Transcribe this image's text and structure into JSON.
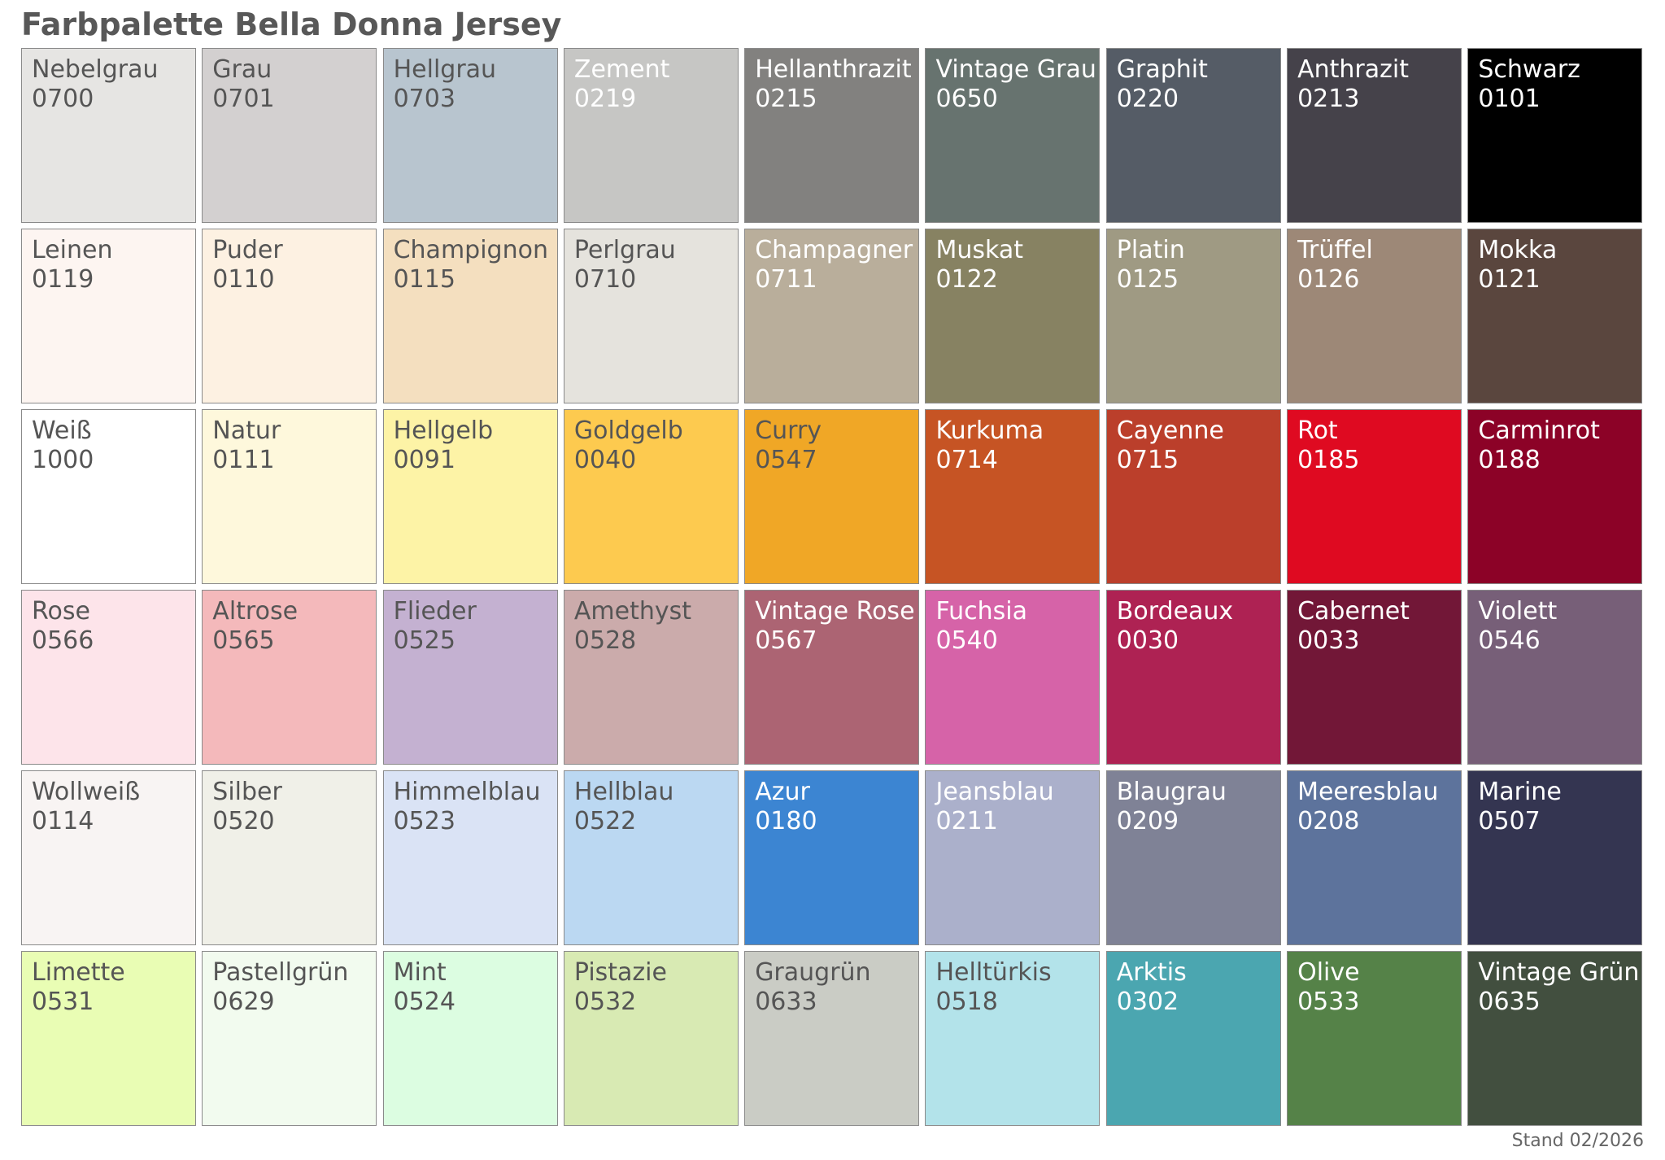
{
  "title": "Farbpalette Bella Donna Jersey",
  "footer": "Stand 02/2026",
  "rows": [
    [
      {
        "name": "Nebelgrau",
        "code": "0700",
        "color": "#e6e5e3",
        "text_color": "#555555"
      },
      {
        "name": "Grau",
        "code": "0701",
        "color": "#d3d0d0",
        "text_color": "#555555"
      },
      {
        "name": "Hellgrau",
        "code": "0703",
        "color": "#b8c5cf",
        "text_color": "#555555"
      },
      {
        "name": "Zement",
        "code": "0219",
        "color": "#c6c6c4",
        "text_color": "#ffffff"
      },
      {
        "name": "Hellanthrazit",
        "code": "0215",
        "color": "#82817f",
        "text_color": "#ffffff"
      },
      {
        "name": "Vintage Grau",
        "code": "0650",
        "color": "#67736f",
        "text_color": "#ffffff"
      },
      {
        "name": "Graphit",
        "code": "0220",
        "color": "#555c66",
        "text_color": "#ffffff"
      },
      {
        "name": "Anthrazit",
        "code": "0213",
        "color": "#45424a",
        "text_color": "#ffffff"
      },
      {
        "name": "Schwarz",
        "code": "0101",
        "color": "#000000",
        "text_color": "#ffffff"
      }
    ],
    [
      {
        "name": "Leinen",
        "code": "0119",
        "color": "#fdf5f1",
        "text_color": "#555555"
      },
      {
        "name": "Puder",
        "code": "0110",
        "color": "#fdf1e2",
        "text_color": "#555555"
      },
      {
        "name": "Champignon",
        "code": "0115",
        "color": "#f4dfbf",
        "text_color": "#555555"
      },
      {
        "name": "Perlgrau",
        "code": "0710",
        "color": "#e5e3dd",
        "text_color": "#555555"
      },
      {
        "name": "Champagner",
        "code": "0711",
        "color": "#b9ae9b",
        "text_color": "#ffffff"
      },
      {
        "name": "Muskat",
        "code": "0122",
        "color": "#878262",
        "text_color": "#ffffff"
      },
      {
        "name": "Platin",
        "code": "0125",
        "color": "#9f9a83",
        "text_color": "#ffffff"
      },
      {
        "name": "Trüffel",
        "code": "0126",
        "color": "#9d8877",
        "text_color": "#ffffff"
      },
      {
        "name": "Mokka",
        "code": "0121",
        "color": "#5a463e",
        "text_color": "#ffffff"
      }
    ],
    [
      {
        "name": "Weiß",
        "code": "1000",
        "color": "#ffffff",
        "text_color": "#555555"
      },
      {
        "name": "Natur",
        "code": "0111",
        "color": "#fef8dc",
        "text_color": "#555555"
      },
      {
        "name": "Hellgelb",
        "code": "0091",
        "color": "#fdf3a6",
        "text_color": "#555555"
      },
      {
        "name": "Goldgelb",
        "code": "0040",
        "color": "#fdca4f",
        "text_color": "#555555"
      },
      {
        "name": "Curry",
        "code": "0547",
        "color": "#f0a726",
        "text_color": "#555555"
      },
      {
        "name": "Kurkuma",
        "code": "0714",
        "color": "#c65424",
        "text_color": "#ffffff"
      },
      {
        "name": "Cayenne",
        "code": "0715",
        "color": "#bb3f2b",
        "text_color": "#ffffff"
      },
      {
        "name": "Rot",
        "code": "0185",
        "color": "#df0a21",
        "text_color": "#ffffff"
      },
      {
        "name": "Carminrot",
        "code": "0188",
        "color": "#8c0227",
        "text_color": "#ffffff"
      }
    ],
    [
      {
        "name": "Rose",
        "code": "0566",
        "color": "#fde4ea",
        "text_color": "#555555"
      },
      {
        "name": "Altrose",
        "code": "0565",
        "color": "#f4b9bb",
        "text_color": "#555555"
      },
      {
        "name": "Flieder",
        "code": "0525",
        "color": "#c4b1d1",
        "text_color": "#555555"
      },
      {
        "name": "Amethyst",
        "code": "0528",
        "color": "#cbabab",
        "text_color": "#555555"
      },
      {
        "name": "Vintage Rose",
        "code": "0567",
        "color": "#ac6473",
        "text_color": "#ffffff"
      },
      {
        "name": "Fuchsia",
        "code": "0540",
        "color": "#d663a8",
        "text_color": "#ffffff"
      },
      {
        "name": "Bordeaux",
        "code": "0030",
        "color": "#ae2253",
        "text_color": "#ffffff"
      },
      {
        "name": "Cabernet",
        "code": "0033",
        "color": "#721737",
        "text_color": "#ffffff"
      },
      {
        "name": "Violett",
        "code": "0546",
        "color": "#775f78",
        "text_color": "#ffffff"
      }
    ],
    [
      {
        "name": "Wollweiß",
        "code": "0114",
        "color": "#f8f4f3",
        "text_color": "#555555"
      },
      {
        "name": "Silber",
        "code": "0520",
        "color": "#f0f0e8",
        "text_color": "#555555"
      },
      {
        "name": "Himmelblau",
        "code": "0523",
        "color": "#dae3f5",
        "text_color": "#555555"
      },
      {
        "name": "Hellblau",
        "code": "0522",
        "color": "#bbd8f2",
        "text_color": "#555555"
      },
      {
        "name": "Azur",
        "code": "0180",
        "color": "#3c85d2",
        "text_color": "#ffffff"
      },
      {
        "name": "Jeansblau",
        "code": "0211",
        "color": "#abb0cb",
        "text_color": "#ffffff"
      },
      {
        "name": "Blaugrau",
        "code": "0209",
        "color": "#7f8296",
        "text_color": "#ffffff"
      },
      {
        "name": "Meeresblau",
        "code": "0208",
        "color": "#5d739c",
        "text_color": "#ffffff"
      },
      {
        "name": "Marine",
        "code": "0507",
        "color": "#343551",
        "text_color": "#ffffff"
      }
    ],
    [
      {
        "name": "Limette",
        "code": "0531",
        "color": "#e9fdb4",
        "text_color": "#555555"
      },
      {
        "name": "Pastellgrün",
        "code": "0629",
        "color": "#f2fbef",
        "text_color": "#555555"
      },
      {
        "name": "Mint",
        "code": "0524",
        "color": "#dcfde1",
        "text_color": "#555555"
      },
      {
        "name": "Pistazie",
        "code": "0532",
        "color": "#d8eab3",
        "text_color": "#555555"
      },
      {
        "name": "Graugrün",
        "code": "0633",
        "color": "#caccc5",
        "text_color": "#555555"
      },
      {
        "name": "Helltürkis",
        "code": "0518",
        "color": "#b3e3ea",
        "text_color": "#555555"
      },
      {
        "name": "Arktis",
        "code": "0302",
        "color": "#4ba6b0",
        "text_color": "#ffffff"
      },
      {
        "name": "Olive",
        "code": "0533",
        "color": "#558248",
        "text_color": "#ffffff"
      },
      {
        "name": "Vintage Grün",
        "code": "0635",
        "color": "#424f3f",
        "text_color": "#ffffff"
      }
    ]
  ]
}
